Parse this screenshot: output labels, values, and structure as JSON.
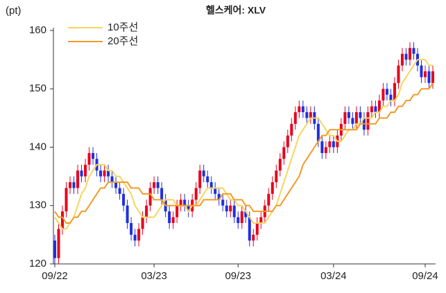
{
  "chart_data": {
    "type": "candlestick",
    "title": "헬스케어: XLV",
    "y_label": "(pt)",
    "categories": [
      "09/22",
      null,
      null,
      null,
      null,
      null,
      null,
      null,
      null,
      null,
      null,
      null,
      null,
      null,
      null,
      null,
      null,
      null,
      null,
      null,
      null,
      null,
      null,
      null,
      null,
      null,
      "03/23",
      null,
      null,
      null,
      null,
      null,
      null,
      null,
      null,
      null,
      null,
      null,
      null,
      null,
      null,
      null,
      null,
      null,
      null,
      null,
      null,
      null,
      "09/23",
      null,
      null,
      null,
      null,
      null,
      null,
      null,
      null,
      null,
      null,
      null,
      null,
      null,
      null,
      null,
      null,
      null,
      null,
      null,
      null,
      null,
      null,
      null,
      null,
      "03/24",
      null,
      null,
      null,
      null,
      null,
      null,
      null,
      null,
      null,
      null,
      null,
      null,
      null,
      null,
      null,
      null,
      null,
      null,
      null,
      null,
      null,
      null,
      null,
      "09/24",
      null,
      null
    ],
    "open": [
      124,
      121,
      126,
      129,
      133,
      134,
      133,
      136,
      135,
      137,
      139,
      138,
      136,
      135,
      136,
      135,
      134,
      133,
      132,
      130,
      127,
      125,
      124,
      126,
      128,
      130,
      133,
      134,
      133,
      131,
      129,
      127,
      128,
      130,
      131,
      130,
      129,
      131,
      133,
      136,
      135,
      134,
      133,
      132,
      131,
      130,
      129,
      130,
      128,
      127,
      129,
      128,
      124,
      125,
      127,
      128,
      130,
      132,
      134,
      136,
      138,
      140,
      142,
      144,
      146,
      147,
      146,
      145,
      146,
      144,
      141,
      139,
      140,
      141,
      140,
      142,
      144,
      146,
      145,
      144,
      146,
      145,
      143,
      146,
      147,
      146,
      148,
      150,
      149,
      148,
      151,
      154,
      156,
      155,
      157,
      156,
      154,
      152,
      153,
      151
    ],
    "high": [
      125,
      127,
      130,
      134,
      135,
      135,
      137,
      137,
      138,
      140,
      140,
      139,
      137,
      137,
      137,
      136,
      135,
      134,
      133,
      131,
      128,
      126,
      127,
      129,
      131,
      134,
      135,
      135,
      134,
      132,
      130,
      129,
      131,
      132,
      132,
      131,
      132,
      134,
      137,
      137,
      136,
      135,
      134,
      133,
      132,
      131,
      131,
      131,
      129,
      130,
      130,
      129,
      126,
      128,
      129,
      131,
      133,
      135,
      137,
      139,
      141,
      143,
      145,
      147,
      148,
      148,
      147,
      147,
      147,
      145,
      142,
      141,
      142,
      142,
      143,
      145,
      147,
      147,
      146,
      147,
      147,
      146,
      147,
      148,
      148,
      149,
      151,
      151,
      150,
      152,
      155,
      157,
      157,
      158,
      158,
      157,
      155,
      154,
      154,
      154
    ],
    "low": [
      120,
      120,
      125,
      128,
      132,
      132,
      132,
      134,
      134,
      136,
      137,
      135,
      134,
      134,
      134,
      133,
      132,
      131,
      129,
      126,
      124,
      123,
      123,
      125,
      127,
      129,
      132,
      132,
      130,
      128,
      126,
      126,
      127,
      129,
      129,
      128,
      128,
      130,
      132,
      134,
      133,
      132,
      131,
      130,
      129,
      128,
      128,
      127,
      126,
      126,
      127,
      123,
      123,
      124,
      126,
      127,
      129,
      131,
      133,
      135,
      137,
      139,
      141,
      143,
      145,
      145,
      144,
      144,
      143,
      140,
      138,
      138,
      139,
      139,
      139,
      141,
      143,
      144,
      143,
      143,
      144,
      142,
      142,
      145,
      145,
      145,
      147,
      148,
      147,
      147,
      150,
      153,
      154,
      154,
      155,
      153,
      151,
      151,
      150,
      150
    ],
    "close": [
      121,
      126,
      129,
      133,
      134,
      133,
      136,
      135,
      137,
      139,
      138,
      136,
      135,
      136,
      135,
      134,
      133,
      132,
      130,
      127,
      125,
      124,
      126,
      128,
      130,
      133,
      134,
      133,
      131,
      129,
      127,
      128,
      130,
      131,
      130,
      129,
      131,
      133,
      136,
      135,
      134,
      133,
      132,
      131,
      130,
      129,
      130,
      128,
      127,
      129,
      128,
      124,
      125,
      127,
      128,
      130,
      132,
      134,
      136,
      138,
      140,
      142,
      144,
      146,
      147,
      146,
      145,
      146,
      144,
      141,
      139,
      140,
      141,
      140,
      142,
      144,
      146,
      145,
      144,
      146,
      145,
      143,
      146,
      147,
      146,
      148,
      150,
      149,
      148,
      151,
      154,
      156,
      155,
      157,
      156,
      154,
      152,
      153,
      151,
      153
    ],
    "up_color": "#e8001c",
    "down_color": "#1f2fe0",
    "series": [
      {
        "name": "10주선",
        "color": "#f9d45c",
        "values": [
          128,
          127,
          126,
          126,
          127,
          128,
          130,
          132,
          133,
          135,
          136,
          137,
          137,
          137,
          136,
          136,
          135,
          135,
          134,
          133,
          132,
          130,
          129,
          128,
          128,
          128,
          128,
          129,
          130,
          131,
          131,
          131,
          130,
          130,
          130,
          129,
          130,
          130,
          131,
          132,
          133,
          133,
          133,
          133,
          133,
          132,
          131,
          131,
          130,
          130,
          129,
          128,
          127,
          127,
          127,
          127,
          128,
          129,
          130,
          132,
          134,
          136,
          138,
          140,
          142,
          143,
          144,
          145,
          145,
          145,
          144,
          143,
          142,
          142,
          141,
          141,
          142,
          143,
          143,
          144,
          144,
          145,
          145,
          145,
          146,
          146,
          147,
          147,
          148,
          148,
          149,
          151,
          152,
          153,
          154,
          155,
          155,
          155,
          154,
          154
        ]
      },
      {
        "name": "20주선",
        "color": "#f39a24",
        "values": [
          129,
          128,
          128,
          127,
          127,
          128,
          128,
          129,
          129,
          130,
          131,
          132,
          133,
          133,
          134,
          134,
          134,
          134,
          134,
          134,
          133,
          133,
          133,
          132,
          132,
          132,
          131,
          131,
          131,
          130,
          130,
          130,
          130,
          130,
          130,
          130,
          130,
          130,
          130,
          131,
          131,
          131,
          131,
          131,
          132,
          132,
          132,
          131,
          131,
          131,
          130,
          130,
          129,
          129,
          129,
          129,
          129,
          129,
          130,
          130,
          131,
          132,
          133,
          134,
          135,
          137,
          138,
          139,
          140,
          141,
          142,
          142,
          143,
          143,
          143,
          143,
          143,
          143,
          143,
          143,
          144,
          144,
          144,
          144,
          144,
          145,
          145,
          145,
          146,
          146,
          147,
          147,
          148,
          148,
          149,
          149,
          150,
          150,
          150,
          151
        ]
      }
    ],
    "ylim": [
      120,
      160
    ],
    "yticks": [
      120,
      130,
      140,
      150,
      160
    ],
    "grid": false
  }
}
